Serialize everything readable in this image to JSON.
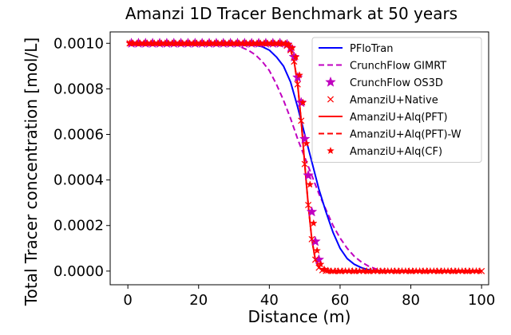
{
  "chart_data": {
    "type": "line",
    "title": "Amanzi 1D Tracer Benchmark at 50 years",
    "xlabel": "Distance (m)",
    "ylabel": "Total Tracer concentration [mol/L]",
    "xlim": [
      -5,
      102
    ],
    "ylim": [
      -6e-05,
      0.00105
    ],
    "xticks": [
      0,
      20,
      40,
      60,
      80,
      100
    ],
    "yticks": [
      0.0,
      0.0002,
      0.0004,
      0.0006,
      0.0008,
      0.001
    ],
    "xtick_labels": [
      "0",
      "20",
      "40",
      "60",
      "80",
      "100"
    ],
    "ytick_labels": [
      "0.0000",
      "0.0002",
      "0.0004",
      "0.0006",
      "0.0008",
      "0.0010"
    ],
    "grid": false,
    "legend_position": "top-right",
    "series": [
      {
        "name": "PFloTran",
        "style": "solid",
        "marker": "none",
        "color": "#0000ff",
        "x": [
          0,
          30,
          35,
          38,
          40,
          42,
          44,
          46,
          48,
          50,
          52,
          54,
          56,
          58,
          60,
          62,
          64,
          66,
          68,
          70,
          75,
          80,
          100
        ],
        "y": [
          0.001,
          0.001,
          0.000995,
          0.000985,
          0.00097,
          0.00094,
          0.0009,
          0.00083,
          0.00072,
          0.0006,
          0.00048,
          0.00036,
          0.00026,
          0.00017,
          0.0001,
          5.5e-05,
          3e-05,
          1.5e-05,
          6e-06,
          2e-06,
          0.0,
          0.0,
          0.0
        ]
      },
      {
        "name": "CrunchFlow GIMRT",
        "style": "dashed",
        "marker": "none",
        "color": "#c000c0",
        "x": [
          0,
          28,
          31,
          34,
          36,
          38,
          40,
          42,
          44,
          46,
          48,
          50,
          52,
          54,
          56,
          58,
          60,
          62,
          64,
          66,
          68,
          70,
          72,
          74,
          76
        ],
        "y": [
          0.001,
          0.001,
          0.00099,
          0.00097,
          0.00095,
          0.00092,
          0.00088,
          0.00082,
          0.00075,
          0.00067,
          0.00058,
          0.0005,
          0.00042,
          0.00034,
          0.00027,
          0.0002,
          0.000145,
          0.0001,
          6.5e-05,
          4e-05,
          2.2e-05,
          1e-05,
          4e-06,
          1e-06,
          0.0
        ]
      },
      {
        "name": "CrunchFlow OS3D",
        "style": "none",
        "marker": "star",
        "color": "#c000c0",
        "x": [
          1,
          3,
          5,
          7,
          9,
          11,
          13,
          15,
          17,
          19,
          21,
          23,
          25,
          27,
          29,
          31,
          33,
          35,
          37,
          39,
          41,
          43,
          45,
          46,
          47,
          48,
          49,
          50,
          51,
          52,
          53,
          54
        ],
        "y": [
          0.001,
          0.001,
          0.001,
          0.001,
          0.001,
          0.001,
          0.001,
          0.001,
          0.001,
          0.001,
          0.001,
          0.001,
          0.001,
          0.001,
          0.001,
          0.001,
          0.001,
          0.001,
          0.001,
          0.001,
          0.001,
          0.001,
          0.000995,
          0.00098,
          0.00094,
          0.00085,
          0.00074,
          0.00058,
          0.00042,
          0.00026,
          0.00013,
          5e-05
        ]
      },
      {
        "name": "AmanziU+Native",
        "style": "none",
        "marker": "x",
        "color": "#ff0000",
        "x": [
          0.5,
          2,
          4,
          6,
          8,
          10,
          12,
          14,
          16,
          18,
          20,
          22,
          24,
          26,
          28,
          30,
          32,
          34,
          36,
          38,
          40,
          42,
          44,
          45,
          46,
          47,
          48,
          49,
          50,
          51,
          52,
          53,
          54,
          55,
          56,
          58,
          60,
          64,
          68,
          72,
          76,
          80,
          84,
          88,
          92,
          96,
          100
        ],
        "y": [
          0.001,
          0.001,
          0.001,
          0.001,
          0.001,
          0.001,
          0.001,
          0.001,
          0.001,
          0.001,
          0.001,
          0.001,
          0.001,
          0.001,
          0.001,
          0.001,
          0.001,
          0.001,
          0.001,
          0.001,
          0.001,
          0.001,
          0.000998,
          0.00099,
          0.00097,
          0.00092,
          0.00082,
          0.00066,
          0.00047,
          0.00029,
          0.00014,
          5e-05,
          1.5e-05,
          4e-06,
          1e-06,
          0.0,
          0.0,
          0.0,
          0.0,
          0.0,
          0.0,
          0.0,
          0.0,
          0.0,
          0.0,
          0.0,
          0.0
        ]
      },
      {
        "name": "AmanziU+Alq(PFT)",
        "style": "solid",
        "marker": "none",
        "color": "#ff0000",
        "x": [
          0,
          40,
          44,
          45,
          46,
          47,
          48,
          49,
          50,
          51,
          52,
          53,
          54,
          55,
          56,
          58,
          100
        ],
        "y": [
          0.001,
          0.001,
          0.000998,
          0.00099,
          0.00097,
          0.00092,
          0.00082,
          0.00066,
          0.00047,
          0.00029,
          0.00014,
          5e-05,
          1.5e-05,
          4e-06,
          1e-06,
          0.0,
          0.0
        ]
      },
      {
        "name": "AmanziU+Alq(PFT)-W",
        "style": "dashed",
        "marker": "none",
        "color": "#ff0000",
        "x": [
          0,
          40,
          44,
          45,
          46,
          47,
          48,
          49,
          50,
          51,
          52,
          53,
          54,
          55,
          56,
          58,
          100
        ],
        "y": [
          0.001,
          0.001,
          0.000998,
          0.00099,
          0.00097,
          0.00092,
          0.00082,
          0.00066,
          0.00047,
          0.00029,
          0.00014,
          5e-05,
          1.5e-05,
          4e-06,
          1e-06,
          0.0,
          0.0
        ]
      },
      {
        "name": "AmanziU+Alq(CF)",
        "style": "none",
        "marker": "star-small",
        "color": "#ff0000",
        "x": [
          0.5,
          1.5,
          2.5,
          3.5,
          4.5,
          5.5,
          6.5,
          7.5,
          8.5,
          9.5,
          10.5,
          11.5,
          12.5,
          13.5,
          14.5,
          15.5,
          16.5,
          17.5,
          18.5,
          19.5,
          20.5,
          21.5,
          22.5,
          23.5,
          24.5,
          25.5,
          26.5,
          27.5,
          28.5,
          29.5,
          30.5,
          31.5,
          32.5,
          33.5,
          34.5,
          35.5,
          36.5,
          37.5,
          38.5,
          39.5,
          40.5,
          41.5,
          42.5,
          43.5,
          44.5,
          45.5,
          46.5,
          47.5,
          48.5,
          49.5,
          50.5,
          51.5,
          52.5,
          53.5,
          54.5,
          55.5,
          56.5,
          57.5,
          58.5,
          59.5,
          60.5,
          61.5,
          62.5,
          63.5,
          64.5,
          65.5,
          66.5,
          67.5,
          68.5,
          69.5,
          70.5,
          71.5,
          72.5,
          73.5,
          74.5,
          75.5,
          76.5,
          77.5,
          78.5,
          79.5,
          80.5,
          81.5,
          82.5,
          83.5,
          84.5,
          85.5,
          86.5,
          87.5,
          88.5,
          89.5,
          90.5,
          91.5,
          92.5,
          93.5,
          94.5,
          95.5,
          96.5,
          97.5,
          98.5,
          99.5
        ],
        "y": [
          0.001,
          0.001,
          0.001,
          0.001,
          0.001,
          0.001,
          0.001,
          0.001,
          0.001,
          0.001,
          0.001,
          0.001,
          0.001,
          0.001,
          0.001,
          0.001,
          0.001,
          0.001,
          0.001,
          0.001,
          0.001,
          0.001,
          0.001,
          0.001,
          0.001,
          0.001,
          0.001,
          0.001,
          0.001,
          0.001,
          0.001,
          0.001,
          0.001,
          0.001,
          0.001,
          0.001,
          0.001,
          0.001,
          0.001,
          0.001,
          0.001,
          0.001,
          0.001,
          0.001,
          0.000999,
          0.000995,
          0.00098,
          0.00094,
          0.00086,
          0.00074,
          0.00056,
          0.00038,
          0.00021,
          9e-05,
          3e-05,
          8e-06,
          2e-06,
          0.0,
          0.0,
          0.0,
          0.0,
          0.0,
          0.0,
          0.0,
          0.0,
          0.0,
          0.0,
          0.0,
          0.0,
          0.0,
          0.0,
          0.0,
          0.0,
          0.0,
          0.0,
          0.0,
          0.0,
          0.0,
          0.0,
          0.0,
          0.0,
          0.0,
          0.0,
          0.0,
          0.0,
          0.0,
          0.0,
          0.0,
          0.0,
          0.0,
          0.0,
          0.0,
          0.0,
          0.0,
          0.0,
          0.0,
          0.0,
          0.0,
          0.0,
          0.0
        ]
      }
    ]
  }
}
